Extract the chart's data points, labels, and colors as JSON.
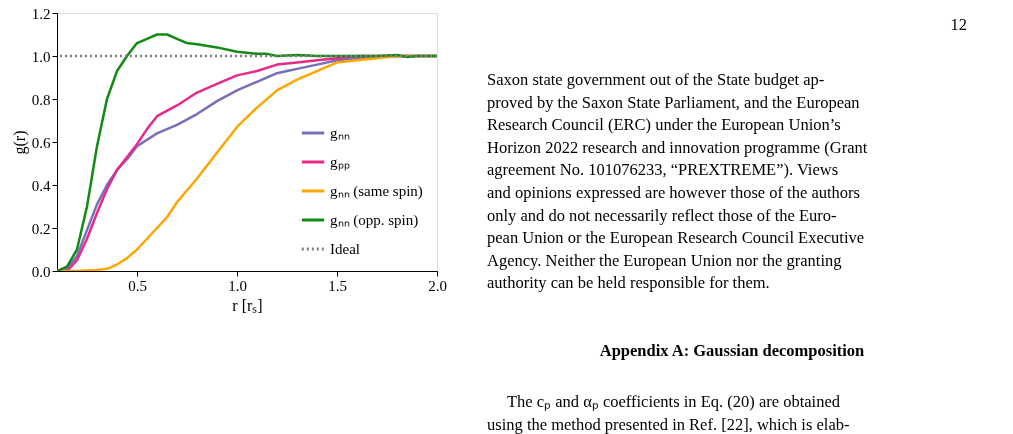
{
  "chart_data": {
    "type": "line",
    "xlabel": "r [rₛ]",
    "ylabel": "g(r)",
    "xlim": [
      0.1,
      2.0
    ],
    "xticks": [
      0.5,
      {
        "value": 1.0,
        "label": "1.0"
      },
      1.5,
      {
        "value": 2.0,
        "label": "2.0"
      }
    ],
    "ylim": [
      0.0,
      1.2
    ],
    "yticks": [
      {
        "value": 0.0,
        "label": "0.0"
      },
      0.2,
      0.4,
      0.6,
      0.8,
      {
        "value": 1.0,
        "label": "1.0"
      },
      1.2
    ],
    "grid": false,
    "legend": "bottom right",
    "line_style": "solid",
    "marker": "none",
    "series": [
      {
        "name": "gₙₙ",
        "color": "#7570b8",
        "x": [
          0.1,
          0.15,
          0.2,
          0.25,
          0.3,
          0.35,
          0.4,
          0.45,
          0.5,
          0.6,
          0.7,
          0.8,
          0.9,
          1.0,
          1.1,
          1.2,
          1.25,
          1.3,
          1.4,
          1.5,
          1.6,
          1.8,
          2.0
        ],
        "values": [
          0,
          0.01,
          0.07,
          0.19,
          0.31,
          0.4,
          0.47,
          0.52,
          0.58,
          0.64,
          0.68,
          0.73,
          0.79,
          0.84,
          0.88,
          0.92,
          0.93,
          0.94,
          0.96,
          0.98,
          0.99,
          1.0,
          1.0
        ]
      },
      {
        "name": "gₚₚ",
        "color": "#e7298a",
        "x": [
          0.1,
          0.15,
          0.2,
          0.25,
          0.3,
          0.35,
          0.4,
          0.5,
          0.55,
          0.6,
          0.7,
          0.8,
          0.9,
          1.0,
          1.1,
          1.2,
          1.3,
          1.4,
          1.5,
          1.6,
          2.0
        ],
        "values": [
          0,
          0.0,
          0.05,
          0.15,
          0.27,
          0.38,
          0.47,
          0.59,
          0.66,
          0.72,
          0.77,
          0.83,
          0.87,
          0.91,
          0.93,
          0.96,
          0.97,
          0.98,
          0.99,
          1.0,
          1.0
        ]
      },
      {
        "name": "gₙₙ (same spin)",
        "color": "#ffa500",
        "x": [
          0.1,
          0.2,
          0.3,
          0.35,
          0.4,
          0.45,
          0.5,
          0.55,
          0.6,
          0.65,
          0.7,
          0.8,
          0.9,
          1.0,
          1.1,
          1.2,
          1.3,
          1.4,
          1.5,
          1.6,
          1.7,
          1.8,
          2.0
        ],
        "values": [
          0,
          0,
          0.005,
          0.01,
          0.03,
          0.06,
          0.1,
          0.15,
          0.2,
          0.25,
          0.32,
          0.43,
          0.55,
          0.67,
          0.76,
          0.84,
          0.89,
          0.93,
          0.97,
          0.98,
          0.99,
          1.0,
          1.0
        ]
      },
      {
        "name": "gₙₙ (opp. spin)",
        "color": "#138a13",
        "x": [
          0.1,
          0.15,
          0.2,
          0.25,
          0.3,
          0.35,
          0.4,
          0.45,
          0.5,
          0.55,
          0.6,
          0.65,
          0.7,
          0.75,
          0.8,
          0.9,
          1.0,
          1.1,
          1.15,
          1.2,
          1.3,
          1.4,
          1.5,
          1.7,
          1.8,
          1.85,
          1.9,
          2.0
        ],
        "values": [
          0,
          0.02,
          0.1,
          0.3,
          0.58,
          0.8,
          0.93,
          1.0,
          1.06,
          1.08,
          1.1,
          1.1,
          1.08,
          1.06,
          1.055,
          1.04,
          1.02,
          1.01,
          1.01,
          1.0,
          1.005,
          1.0,
          1.0,
          1.0,
          1.005,
          0.995,
          1.0,
          1.0
        ]
      }
    ],
    "ref_lines": [
      {
        "axis": "y",
        "value": 1.0,
        "label": "Ideal",
        "color": "#808080",
        "line_style": "dotted"
      }
    ],
    "annotations": [
      "12",
      "Saxon state government out of the State budget ap-",
      "proved by the Saxon State Parliament, and the European",
      "Research Council (ERC) under the European Union’s",
      "Horizon 2022 research and innovation programme (Grant",
      "agreement No. 101076233, “PREXTREME”). Views",
      "and opinions expressed are however those of the authors",
      "only and do not necessarily reflect those of the Euro-",
      "pean Union or the European Research Council Executive",
      "Agency. Neither the European Union nor the granting",
      "authority can be held responsible for them.",
      "Appendix A: Gaussian decomposition",
      "The cₚ and αₚ coefficients in Eq. (20) are obtained",
      "using the method presented in Ref. [22], which is elab-"
    ]
  }
}
